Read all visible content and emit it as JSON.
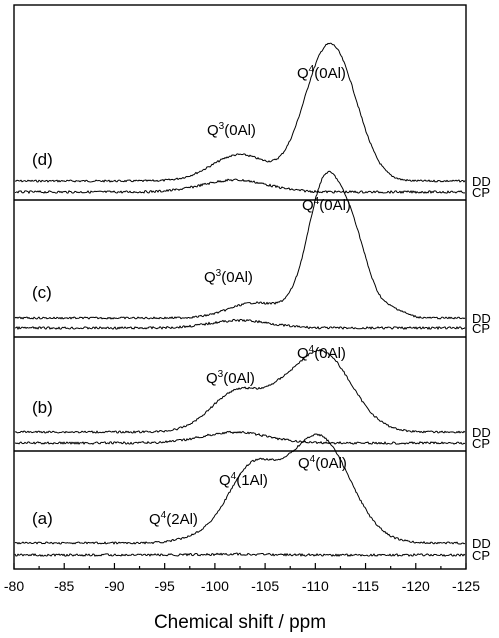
{
  "chart_data": {
    "type": "line",
    "title": "",
    "xlabel": "Chemical shift / ppm",
    "ylabel": "",
    "xlim": [
      -80,
      -125
    ],
    "xticks": [
      "-80",
      "-85",
      "-90",
      "-95",
      "-100",
      "-105",
      "-110",
      "-115",
      "-120",
      "-125"
    ],
    "grid": false,
    "panels": [
      {
        "id": "d",
        "label": "(d)",
        "series": [
          {
            "name": "DD",
            "peaks": [
              {
                "x": -102.5,
                "amp": 0.11,
                "w": 2.8
              },
              {
                "x": -110.6,
                "amp": 0.37,
                "w": 1.9
              },
              {
                "x": -113.0,
                "amp": 0.31,
                "w": 2.0
              },
              {
                "x": -108.3,
                "amp": 0.05,
                "w": 1.6
              }
            ]
          },
          {
            "name": "CP",
            "peaks": [
              {
                "x": -102.0,
                "amp": 0.05,
                "w": 3.2
              }
            ]
          }
        ],
        "annotations": [
          {
            "base": "Q",
            "sup": "4",
            "rest": "(0Al)"
          },
          {
            "base": "Q",
            "sup": "3",
            "rest": "(0Al)"
          }
        ]
      },
      {
        "id": "c",
        "label": "(c)",
        "series": [
          {
            "name": "DD",
            "peaks": [
              {
                "x": -104.0,
                "amp": 0.08,
                "w": 2.6
              },
              {
                "x": -110.7,
                "amp": 0.58,
                "w": 1.5
              },
              {
                "x": -113.4,
                "amp": 0.48,
                "w": 1.7
              },
              {
                "x": -117.8,
                "amp": 0.04,
                "w": 1.2
              },
              {
                "x": -108.4,
                "amp": 0.06,
                "w": 1.4
              }
            ]
          },
          {
            "name": "CP",
            "peaks": [
              {
                "x": -102.5,
                "amp": 0.04,
                "w": 3.0
              }
            ]
          }
        ],
        "annotations": [
          {
            "base": "Q",
            "sup": "4",
            "rest": "(0Al)"
          },
          {
            "base": "Q",
            "sup": "3",
            "rest": "(0Al)"
          }
        ]
      },
      {
        "id": "b",
        "label": "(b)",
        "series": [
          {
            "name": "DD",
            "peaks": [
              {
                "x": -102.4,
                "amp": 0.23,
                "w": 2.7
              },
              {
                "x": -110.5,
                "amp": 0.45,
                "w": 3.0
              },
              {
                "x": -106.5,
                "amp": 0.04,
                "w": 1.3
              }
            ]
          },
          {
            "name": "CP",
            "peaks": [
              {
                "x": -102.0,
                "amp": 0.06,
                "w": 3.2
              }
            ]
          }
        ],
        "annotations": [
          {
            "base": "Q",
            "sup": "4",
            "rest": "(0Al)"
          },
          {
            "base": "Q",
            "sup": "3",
            "rest": "(0Al)"
          }
        ]
      },
      {
        "id": "a",
        "label": "(a)",
        "series": [
          {
            "name": "DD",
            "peaks": [
              {
                "x": -98.5,
                "amp": 0.03,
                "w": 2.0
              },
              {
                "x": -103.6,
                "amp": 0.4,
                "w": 2.4
              },
              {
                "x": -110.3,
                "amp": 0.61,
                "w": 3.1
              }
            ]
          },
          {
            "name": "CP",
            "peaks": [
              {
                "x": -102.0,
                "amp": 0.005,
                "w": 3.0
              }
            ]
          }
        ],
        "annotations": [
          {
            "base": "Q",
            "sup": "4",
            "rest": "(0Al)"
          },
          {
            "base": "Q",
            "sup": "4",
            "rest": "(1Al)"
          },
          {
            "base": "Q",
            "sup": "4",
            "rest": "(2Al)"
          }
        ]
      }
    ]
  }
}
